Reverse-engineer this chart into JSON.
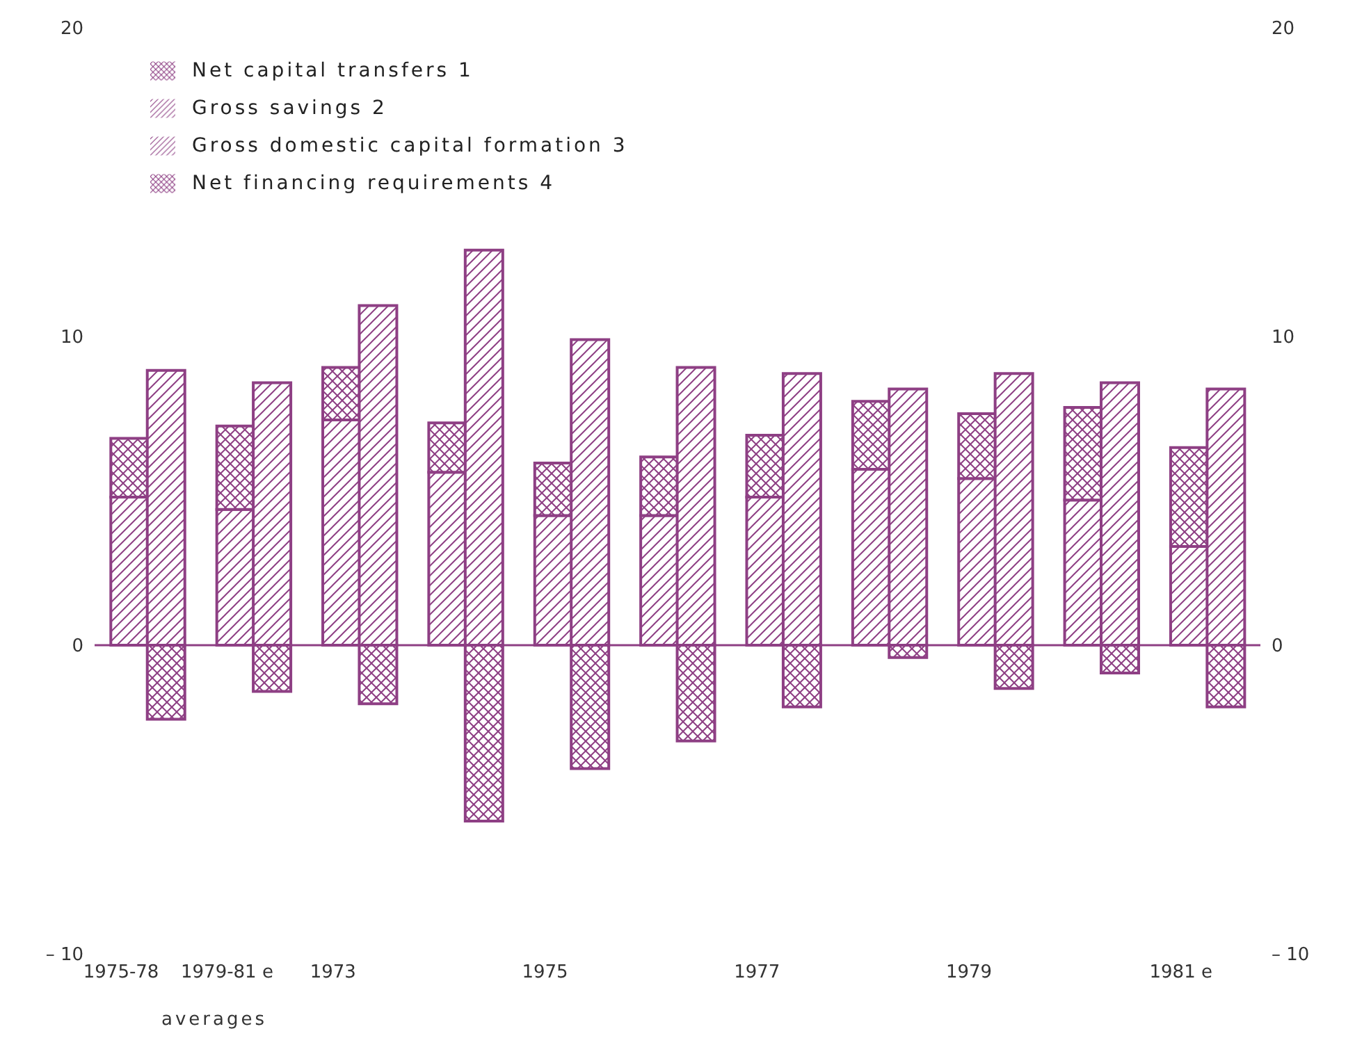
{
  "chart_data": {
    "type": "bar",
    "stacked": true,
    "categories": [
      "1975-78",
      null,
      "1979-81 e",
      null,
      "1973",
      null,
      null,
      null,
      "1975",
      null,
      null,
      null,
      "1977",
      null,
      null,
      null,
      "1979",
      null,
      null,
      null,
      "1981 e",
      null
    ],
    "series": [
      {
        "name": "Gross savings 2",
        "color": "#8e3f84",
        "values": [
          4.8,
          null,
          4.4,
          null,
          7.3,
          null,
          5.6,
          null,
          4.2,
          null,
          4.2,
          null,
          4.8,
          null,
          5.7,
          null,
          5.4,
          null,
          4.7,
          null,
          3.2,
          null
        ]
      },
      {
        "name": "Net capital transfers 1",
        "color": "#8e3f84",
        "values": [
          1.9,
          null,
          2.7,
          null,
          1.7,
          null,
          1.6,
          null,
          1.7,
          null,
          1.9,
          null,
          2.0,
          null,
          2.2,
          null,
          2.1,
          null,
          3.0,
          null,
          3.2,
          null
        ]
      },
      {
        "name": "Gross domestic capital formation 3",
        "color": "#8e3f84",
        "values": [
          null,
          8.9,
          null,
          8.5,
          null,
          11.0,
          null,
          12.8,
          null,
          9.9,
          null,
          9.0,
          null,
          8.8,
          null,
          8.3,
          null,
          8.8,
          null,
          8.5,
          null,
          8.3
        ]
      },
      {
        "name": "Net financing requirements 4",
        "color": "#8e3f84",
        "values": [
          null,
          -2.4,
          null,
          -1.5,
          null,
          -1.9,
          null,
          -5.7,
          null,
          -4.0,
          null,
          -3.1,
          null,
          -2.0,
          null,
          -0.4,
          null,
          -1.4,
          null,
          -0.9,
          null,
          -2.0
        ]
      }
    ],
    "ylim": [
      -10,
      20
    ],
    "yticks": [
      {
        "value": -10,
        "label": "– 10"
      },
      0,
      10,
      20
    ],
    "y2lim": [
      -10,
      20
    ],
    "y2ticks": [
      {
        "value": -10,
        "label": "– 10"
      },
      0,
      10,
      20
    ],
    "ref_lines": [
      {
        "axis": "y",
        "value": 0,
        "color": "#8e3f84"
      }
    ],
    "annotations": [
      "averages"
    ],
    "legend": "top left",
    "grid": false
  }
}
